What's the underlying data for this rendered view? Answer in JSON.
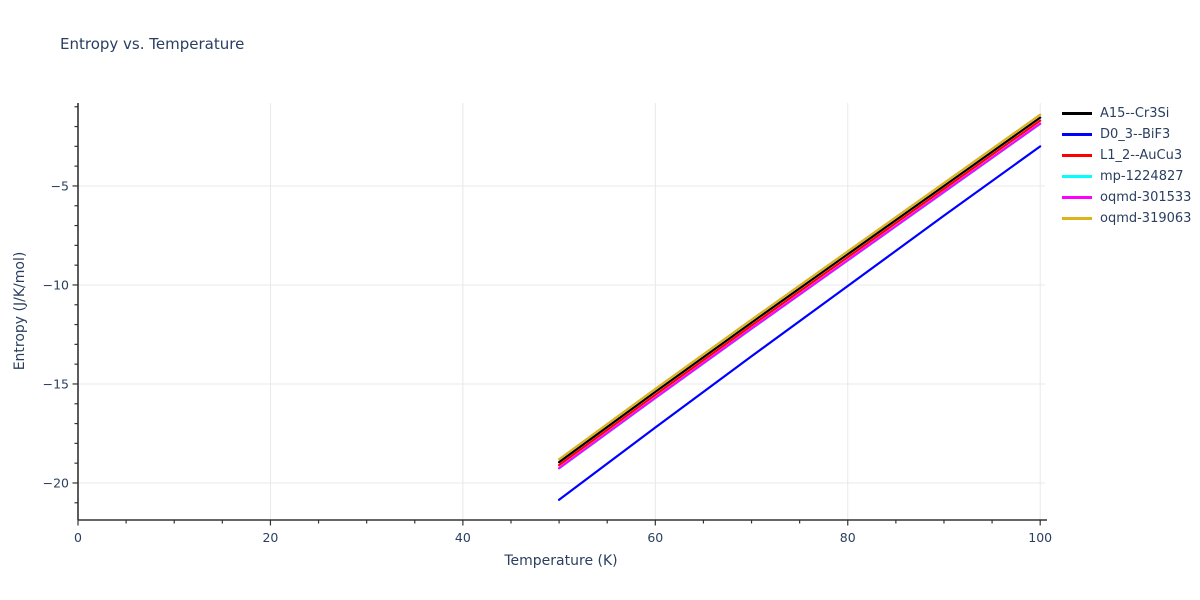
{
  "title": "Entropy vs. Temperature",
  "colors": {
    "text": "#2a3f5f",
    "grid": "#e8e8e8",
    "axis": "#333333",
    "background": "#ffffff"
  },
  "chart_data": {
    "type": "line",
    "title": "Entropy vs. Temperature",
    "xlabel": "Temperature (K)",
    "ylabel": "Entropy (J/K/mol)",
    "xlim": [
      0,
      100.5
    ],
    "ylim": [
      -21.87,
      -0.81
    ],
    "x_major_ticks": [
      0,
      20,
      40,
      60,
      80,
      100
    ],
    "x_minor_step": 5,
    "y_major_ticks": [
      -5,
      -10,
      -15,
      -20
    ],
    "y_minor_step": 1,
    "grid": true,
    "legend_position": "right",
    "series": [
      {
        "name": "A15--Cr3Si",
        "color": "#000000",
        "x": [
          50,
          60,
          70,
          80,
          90,
          100
        ],
        "y": [
          -18.95,
          -15.4,
          -11.9,
          -8.45,
          -5.0,
          -1.55
        ]
      },
      {
        "name": "D0_3--BiF3",
        "color": "#0000ff",
        "x": [
          50,
          60,
          70,
          80,
          90,
          100
        ],
        "y": [
          -20.85,
          -17.2,
          -13.6,
          -10.05,
          -6.5,
          -3.0
        ]
      },
      {
        "name": "L1_2--AuCu3",
        "color": "#ff0000",
        "x": [
          50,
          60,
          70,
          80,
          90,
          100
        ],
        "y": [
          -19.1,
          -15.55,
          -12.05,
          -8.6,
          -5.15,
          -1.7
        ]
      },
      {
        "name": "mp-1224827",
        "color": "#00ffff",
        "x": [
          50,
          60,
          70,
          80,
          90,
          100
        ],
        "y": [
          -19.27,
          -15.72,
          -12.22,
          -8.77,
          -5.32,
          -1.87
        ]
      },
      {
        "name": "oqmd-301533",
        "color": "#ff00ff",
        "x": [
          50,
          60,
          70,
          80,
          90,
          100
        ],
        "y": [
          -19.25,
          -15.7,
          -12.2,
          -8.75,
          -5.3,
          -1.85
        ]
      },
      {
        "name": "oqmd-319063",
        "color": "#dcb31b",
        "x": [
          50,
          60,
          70,
          80,
          90,
          100
        ],
        "y": [
          -18.8,
          -15.25,
          -11.75,
          -8.3,
          -4.85,
          -1.4
        ]
      }
    ]
  }
}
